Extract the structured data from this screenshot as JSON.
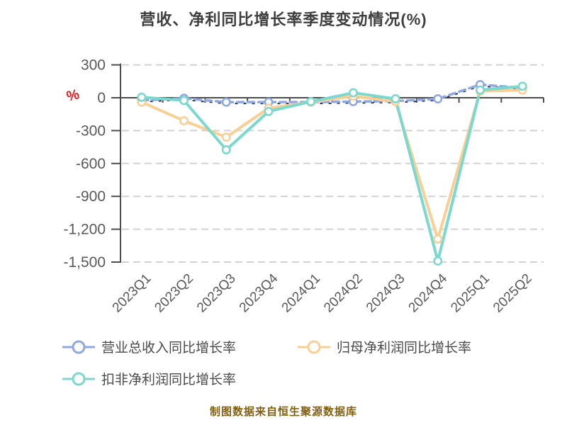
{
  "title": "营收、净利同比增长率季度变动情况(%)",
  "y_axis": {
    "unit_label": "%",
    "unit_color": "#e02020",
    "tick_labels": [
      "300",
      "0",
      "-300",
      "-600",
      "-900",
      "-1,200",
      "-1,500"
    ]
  },
  "footer": {
    "source_note": "制图数据来自恒生聚源数据库"
  },
  "chart_data": {
    "type": "line",
    "title": "营收、净利同比增长率季度变动情况(%)",
    "categories": [
      "2023Q1",
      "2023Q2",
      "2023Q3",
      "2023Q4",
      "2024Q1",
      "2024Q2",
      "2024Q3",
      "2024Q4",
      "2025Q1",
      "2025Q2"
    ],
    "series": [
      {
        "name": "营业总收入同比增长率",
        "color": "#8FA8DF",
        "line_style": "dashed",
        "marker": "hollow-circle",
        "values": [
          -25,
          -5,
          -40,
          -40,
          -40,
          -35,
          -30,
          -10,
          120,
          90
        ]
      },
      {
        "name": "归母净利润同比增长率",
        "color": "#F9CF96",
        "line_style": "solid",
        "marker": "hollow-circle",
        "values": [
          -40,
          -210,
          -360,
          -95,
          -40,
          15,
          -35,
          -1290,
          60,
          70
        ]
      },
      {
        "name": "扣非净利润同比增长率",
        "color": "#7AD8CF",
        "line_style": "solid",
        "marker": "hollow-circle",
        "values": [
          5,
          -25,
          -475,
          -125,
          -35,
          45,
          -10,
          -1490,
          70,
          105
        ]
      }
    ],
    "ylim": [
      -1500,
      300
    ],
    "ytick_step": 300,
    "grid": "dashed-horizontal",
    "x_axis_position": "zero",
    "legend_position": "bottom-left"
  },
  "colors": {
    "title": "#3e3e3e",
    "axis_line": "#4d4d4d",
    "grid_line": "#d2d2d2",
    "tick_label": "#595959",
    "legend_text": "#4a4a4a",
    "footer_text": "#82600f",
    "blue_shadow_line": "#1f2d55",
    "background": "#ffffff"
  }
}
